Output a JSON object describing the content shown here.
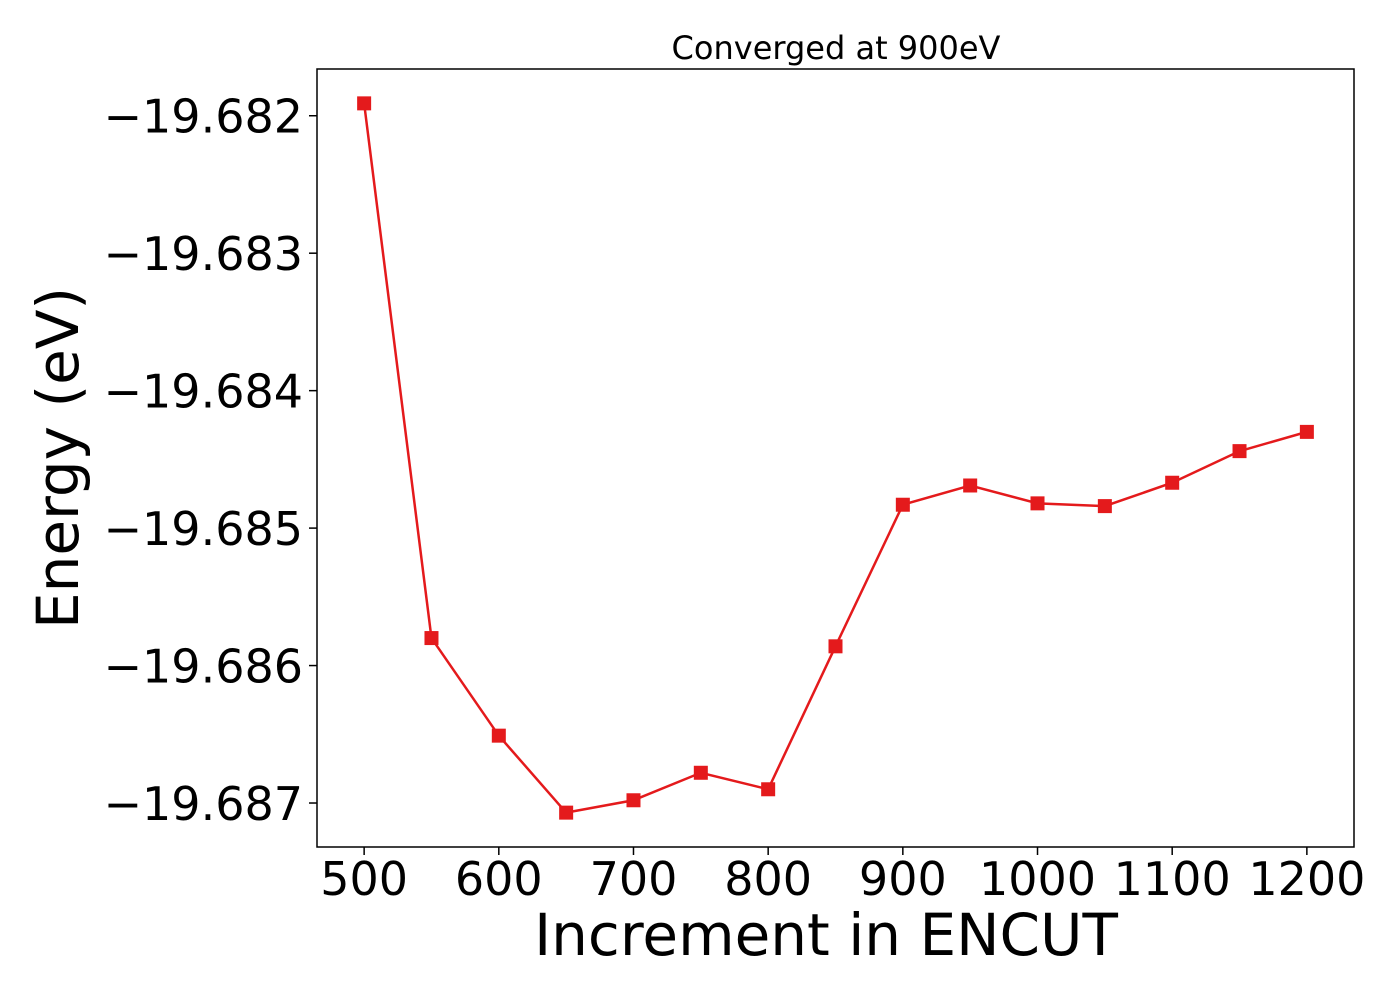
{
  "chart_data": {
    "type": "line",
    "title": "Converged at 900eV",
    "xlabel": "Increment in ENCUT",
    "ylabel": "Energy (eV)",
    "x": [
      500,
      550,
      600,
      650,
      700,
      750,
      800,
      850,
      900,
      950,
      1000,
      1050,
      1100,
      1150,
      1200
    ],
    "series": [
      {
        "values": [
          -19.68191,
          -19.6858,
          -19.68651,
          -19.68707,
          -19.68698,
          -19.68678,
          -19.6869,
          -19.68586,
          -19.68483,
          -19.68469,
          -19.68482,
          -19.68484,
          -19.68467,
          -19.68444,
          -19.6843
        ],
        "color": "#e41a1c",
        "marker": "square"
      }
    ],
    "xticks": [
      500,
      600,
      700,
      800,
      900,
      1000,
      1100,
      1200
    ],
    "xtick_labels": [
      "500",
      "600",
      "700",
      "800",
      "900",
      "1000",
      "1100",
      "1200"
    ],
    "yticks": [
      -19.682,
      -19.683,
      -19.684,
      -19.685,
      -19.686,
      -19.687
    ],
    "ytick_labels": [
      "−19.682",
      "−19.683",
      "−19.684",
      "−19.685",
      "−19.686",
      "−19.687"
    ],
    "xlim": [
      465,
      1235
    ],
    "ylim": [
      -19.68732,
      -19.68166
    ],
    "grid": false,
    "legend": "none"
  }
}
